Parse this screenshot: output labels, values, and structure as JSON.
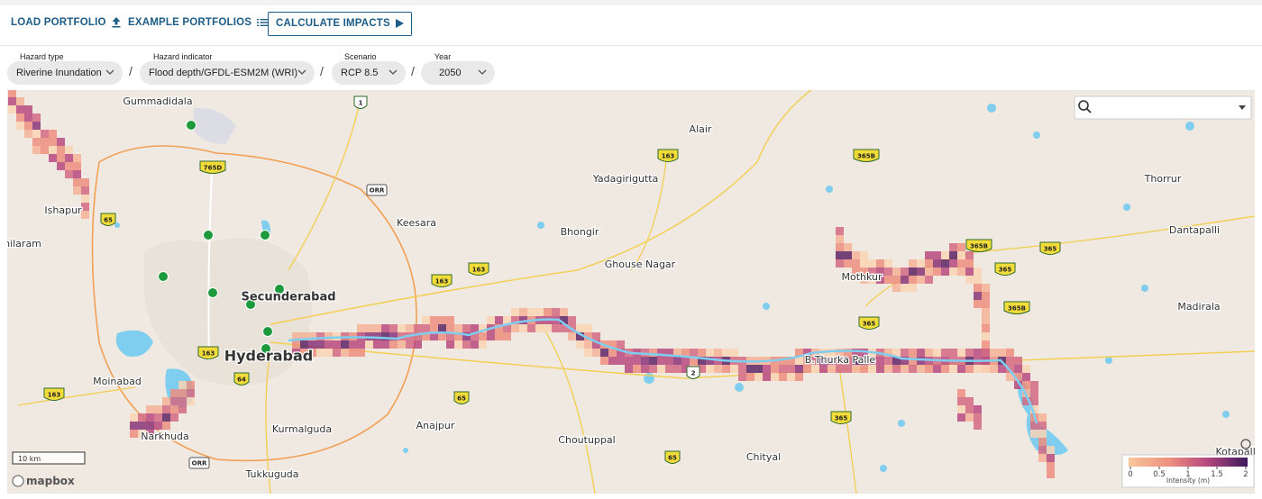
{
  "toolbar": {
    "load": "LOAD PORTFOLIO",
    "examples": "EXAMPLE PORTFOLIOS",
    "calculate": "CALCULATE IMPACTS"
  },
  "filters": [
    {
      "label": "Hazard type",
      "value": "Riverine Inundation"
    },
    {
      "label": "Hazard indicator",
      "value": "Flood depth/GFDL-ESM2M (WRI)"
    },
    {
      "label": "Scenario",
      "value": "RCP 8.5"
    },
    {
      "label": "Year",
      "value": "2050"
    }
  ],
  "separator": "/",
  "map": {
    "places": [
      "Gummadidala",
      "Alair",
      "Yadagirigutta",
      "Thorrur",
      "Ishapur",
      "Keesara",
      "Bhongir",
      "Dantapalli",
      "hilaram",
      "Ghouse Nagar",
      "Mothkur",
      "Secunderabad",
      "Madirala",
      "Hyderabad",
      "Moinabad",
      "B.Thurka Palle",
      "Narkhuda",
      "Kurmalguda",
      "Anajpur",
      "Choutuppal",
      "Chityal",
      "Tukkuguda",
      "Kotapalle"
    ],
    "shields": [
      "1",
      "765D",
      "ORR",
      "163",
      "365B",
      "65",
      "163",
      "163",
      "365B",
      "365",
      "365",
      "365B",
      "365",
      "163",
      "64",
      "2",
      "65",
      "365",
      "163",
      "ORR",
      "65"
    ],
    "scale": "10 km",
    "attribution": "mapbox"
  },
  "legend": {
    "ticks": [
      0,
      0.5,
      1,
      1.5,
      2
    ],
    "title": "Intensity (m)"
  }
}
